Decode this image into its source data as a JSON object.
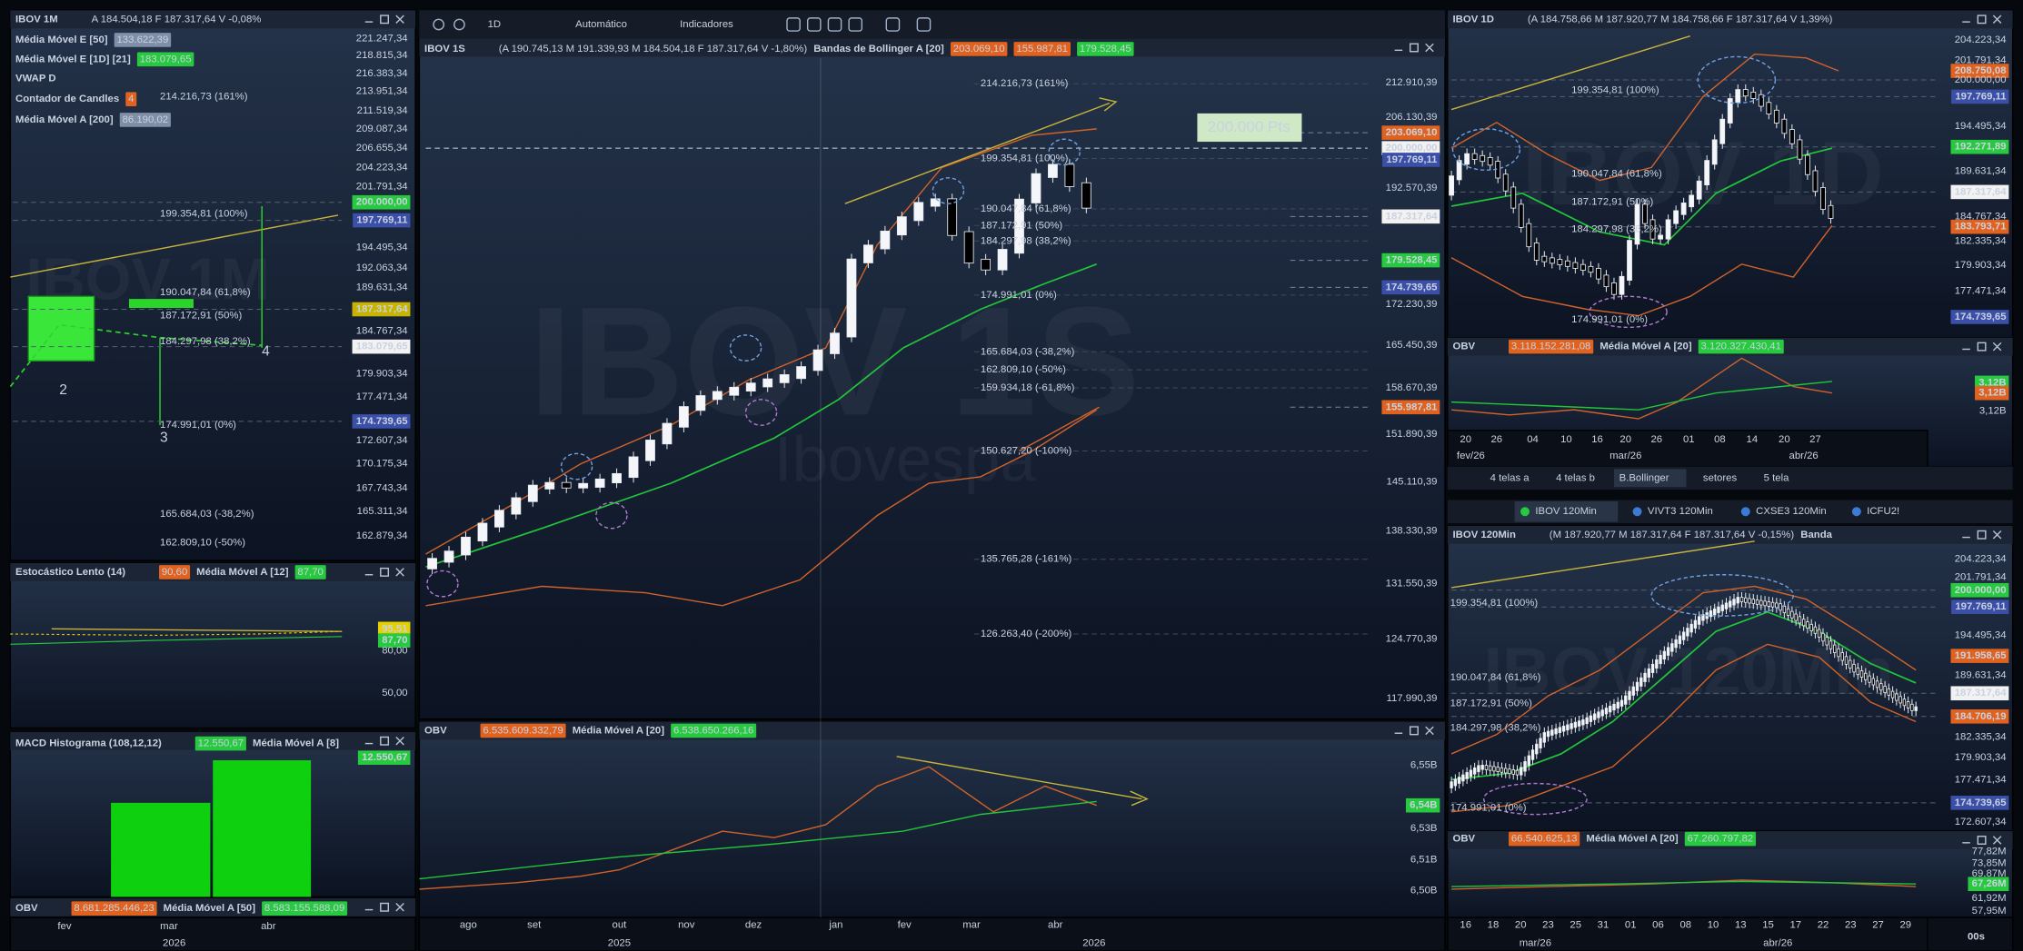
{
  "toolbar": [
    "1D",
    "Automático",
    "Indicadores"
  ],
  "tabs": [
    "4 telas a",
    "4 telas b",
    "B.Bollinger",
    "setores",
    "5 tela"
  ],
  "chart_tabs": [
    "IBOV 120Min",
    "VIVT3 120Min",
    "CXSE3 120Min",
    "ICFU2!"
  ],
  "status": "00s",
  "panels": [
    {
      "header": [
        {
          "text": "IBOV 1M",
          "bold": true
        },
        {
          "text": "A 184.504,18 F 187.317,64 V -0,08%",
          "fg": "#ff6b6b"
        }
      ],
      "watermark": "IBOV 1M",
      "indicators": [
        [
          {
            "text": "Média Móvel E [50]",
            "bold": true
          },
          {
            "text": "133.622,39",
            "bg": "#7f8fa8"
          }
        ],
        [
          {
            "text": "Média Móvel E [1D] [21]",
            "bold": true
          },
          {
            "text": "183.079,65",
            "bg": "#27c93f"
          }
        ],
        [
          {
            "text": "VWAP D",
            "bold": true
          }
        ],
        [
          {
            "text": "Contador de Candles",
            "bold": true
          },
          {
            "text": "4",
            "bg": "#e0621e"
          }
        ],
        [
          {
            "text": "Média Móvel A [200]",
            "bold": true
          },
          {
            "text": "86.190,02",
            "bg": "#7f8fa8"
          }
        ]
      ],
      "axis": [
        {
          "label": "221.247,34"
        },
        {
          "label": "218.815,34"
        },
        {
          "label": "216.383,34"
        },
        {
          "label": "213.951,34"
        },
        {
          "label": "211.519,34"
        },
        {
          "label": "209.087,34"
        },
        {
          "label": "206.655,34"
        },
        {
          "label": "204.223,34"
        },
        {
          "label": "201.791,34"
        },
        {
          "label": "200.000,00",
          "bg": "#27c93f"
        },
        {
          "label": "197.769,11",
          "bg": "#3b4fa8"
        },
        {
          "label": "194.495,34"
        },
        {
          "label": "192.063,34"
        },
        {
          "label": "189.631,34"
        },
        {
          "label": "187.317,64",
          "bg": "#c8b400"
        },
        {
          "label": "184.767,34"
        },
        {
          "label": "183.079,65",
          "bg": "#f2f2f2"
        },
        {
          "label": "179.903,34"
        },
        {
          "label": "177.471,34"
        },
        {
          "label": "174.739,65",
          "bg": "#3b4fa8"
        },
        {
          "label": "172.607,34"
        },
        {
          "label": "170.175,34"
        },
        {
          "label": "167.743,34"
        },
        {
          "label": "165.311,34"
        },
        {
          "label": "162.879,34"
        }
      ],
      "fib": [
        "214.216,73 (161%)",
        "199.354,81 (100%)",
        "190.047,84 (61,8%)",
        "187.172,91 (50%)",
        "184.297,98 (38,2%)",
        "174.991,01 (0%)",
        "165.684,03 (-38,2%)",
        "162.809,10 (-50%)"
      ],
      "waves": [
        "2",
        "3",
        "4"
      ]
    },
    {
      "header": [
        {
          "text": "Estocástico Lento (14)",
          "bold": true
        },
        {
          "text": "90,60",
          "bg": "#e0621e"
        },
        {
          "text": "Média Móvel A [12]",
          "bold": true
        },
        {
          "text": "87,70",
          "bg": "#27c93f"
        }
      ],
      "axis": [
        {
          "label": "95,51",
          "bg": "#e8d000"
        },
        {
          "label": "87,70",
          "bg": "#27c93f"
        },
        {
          "label": "80,00"
        },
        {
          "label": "50,00"
        }
      ]
    },
    {
      "header": [
        {
          "text": "MACD Histograma (108,12,12)",
          "bold": true
        },
        {
          "text": "12.550,67",
          "bg": "#27c93f"
        },
        {
          "text": "Média Móvel A [8]",
          "bold": true
        }
      ],
      "axis": [
        {
          "label": "12.550,67",
          "bg": "#27c93f"
        }
      ]
    },
    {
      "header": [
        {
          "text": "OBV",
          "bold": true
        },
        {
          "text": "8.681.285.446,23",
          "bg": "#e0621e"
        },
        {
          "text": "Média Móvel A [50]",
          "bold": true
        },
        {
          "text": "8.583.155.588,09",
          "bg": "#27c93f"
        }
      ],
      "x_labels": [
        "fev",
        "mar",
        "abr"
      ],
      "x_groups": [
        "2026"
      ]
    },
    {
      "header": [
        {
          "text": "IBOV 1S",
          "bold": true
        },
        {
          "text": "(A 190.745,13 M 191.339,93 M 184.504,18 F 187.317,64 V -1,80%)",
          "fg": "#ff6b6b"
        },
        {
          "text": "Bandas de Bollinger A [20]",
          "bold": true
        },
        {
          "text": "203.069,10",
          "bg": "#e0621e"
        },
        {
          "text": "155.987,81",
          "bg": "#e0621e"
        },
        {
          "text": "179.528,45",
          "bg": "#27c93f"
        }
      ],
      "watermark": "IBOV 1S",
      "watermark_sub": "Ibovespa",
      "note": "200.000 Pts",
      "axis": [
        {
          "label": "212.910,39"
        },
        {
          "label": "206.130,39"
        },
        {
          "label": "203.069,10",
          "bg": "#e0621e"
        },
        {
          "label": "200.000,00",
          "bg": "#f2f2f2"
        },
        {
          "label": "197.769,11",
          "bg": "#3b4fa8"
        },
        {
          "label": "192.570,39"
        },
        {
          "label": "187.317,64",
          "bg": "#f2f2f2"
        },
        {
          "label": "179.528,45",
          "bg": "#27c93f"
        },
        {
          "label": "174.739,65",
          "bg": "#3b4fa8"
        },
        {
          "label": "172.230,39"
        },
        {
          "label": "165.450,39"
        },
        {
          "label": "158.670,39"
        },
        {
          "label": "155.987,81",
          "bg": "#e0621e"
        },
        {
          "label": "151.890,39"
        },
        {
          "label": "145.110,39"
        },
        {
          "label": "138.330,39"
        },
        {
          "label": "131.550,39"
        },
        {
          "label": "124.770,39"
        },
        {
          "label": "117.990,39"
        }
      ],
      "fib": [
        "214.216,73 (161%)",
        "199.354,81 (100%)",
        "190.047,84 (61,8%)",
        "187.172,91 (50%)",
        "184.297,98 (38,2%)",
        "174.991,01 (0%)",
        "165.684,03 (-38,2%)",
        "162.809,10 (-50%)",
        "159.934,18 (-61,8%)",
        "150.627,20 (-100%)",
        "135.765,28 (-161%)",
        "126.263,40 (-200%)"
      ]
    },
    {
      "header": [
        {
          "text": "OBV",
          "bold": true
        },
        {
          "text": "6.535.609.332,79",
          "bg": "#e0621e"
        },
        {
          "text": "Média Móvel A [20]",
          "bold": true
        },
        {
          "text": "6.538.650.266,16",
          "bg": "#27c93f"
        }
      ],
      "axis": [
        {
          "label": "6,55B"
        },
        {
          "label": "6,54B",
          "bg": "#27c93f"
        },
        {
          "label": "6,53B"
        },
        {
          "label": "6,51B"
        },
        {
          "label": "6,50B"
        }
      ],
      "x_labels": [
        "ago",
        "set",
        "out",
        "nov",
        "dez",
        "jan",
        "fev",
        "mar",
        "abr"
      ],
      "x_groups": [
        "2025",
        "2026"
      ]
    },
    {
      "header": [
        {
          "text": "IBOV 1D",
          "bold": true
        },
        {
          "text": "(A 184.758,66 M 187.920,77 M 184.758,66 F 187.317,64 V 1,39%)",
          "fg": "#7dff8a"
        }
      ],
      "watermark": "IBOV 1D",
      "axis": [
        {
          "label": "204.223,34"
        },
        {
          "label": "201.791,34"
        },
        {
          "label": "208.750,08",
          "bg": "#e0621e"
        },
        {
          "label": "200.000,00"
        },
        {
          "label": "197.769,11",
          "bg": "#3b4fa8"
        },
        {
          "label": "194.495,34"
        },
        {
          "label": "192.271,89",
          "bg": "#27c93f"
        },
        {
          "label": "189.631,34"
        },
        {
          "label": "187.317,64",
          "bg": "#f2f2f2"
        },
        {
          "label": "184.767,34"
        },
        {
          "label": "183.793,71",
          "bg": "#e0621e"
        },
        {
          "label": "182.335,34"
        },
        {
          "label": "179.903,34"
        },
        {
          "label": "177.471,34"
        },
        {
          "label": "174.739,65",
          "bg": "#3b4fa8"
        }
      ],
      "fib": [
        "199.354,81 (100%)",
        "190.047,84 (61,8%)",
        "187.172,91 (50%)",
        "184.297,98 (38,2%)",
        "174.991,01 (0%)"
      ]
    },
    {
      "header": [
        {
          "text": "OBV",
          "bold": true
        },
        {
          "text": "3.118.152.281,08",
          "bg": "#e0621e"
        },
        {
          "text": "Média Móvel A [20]",
          "bold": true
        },
        {
          "text": "3.120.327.430,41",
          "bg": "#27c93f"
        }
      ],
      "axis": [
        {
          "label": "3,12B",
          "bg": "#27c93f"
        },
        {
          "label": "3,12B",
          "bg": "#e0621e"
        },
        {
          "label": "3,12B"
        }
      ],
      "x_labels": [
        "20",
        "26",
        "04",
        "10",
        "16",
        "20",
        "26",
        "01",
        "08",
        "14",
        "20",
        "27"
      ],
      "x_groups": [
        "fev/26",
        "mar/26",
        "abr/26"
      ]
    },
    {
      "header": [
        {
          "text": "IBOV 120Min",
          "bold": true
        },
        {
          "text": "(M 187.920,77 M 187.317,64 F 187.317,64 V -0,15%)",
          "fg": "#ff6b6b"
        },
        {
          "text": "Banda",
          "bold": true
        }
      ],
      "watermark": "IBOV 120Min",
      "axis": [
        {
          "label": "204.223,34"
        },
        {
          "label": "201.791,34"
        },
        {
          "label": "200.000,00",
          "bg": "#27c93f"
        },
        {
          "label": "197.769,11",
          "bg": "#3b4fa8"
        },
        {
          "label": "194.495,34"
        },
        {
          "label": "191.958,65",
          "bg": "#e0621e"
        },
        {
          "label": "189.631,34"
        },
        {
          "label": "187.317,64",
          "bg": "#f2f2f2"
        },
        {
          "label": "184.706,19",
          "bg": "#e0621e"
        },
        {
          "label": "182.335,34"
        },
        {
          "label": "179.903,34"
        },
        {
          "label": "177.471,34"
        },
        {
          "label": "174.739,65",
          "bg": "#3b4fa8"
        },
        {
          "label": "172.607,34"
        }
      ],
      "fib": [
        "199.354,81 (100%)",
        "190.047,84 (61,8%)",
        "187.172,91 (50%)",
        "184.297,98 (38,2%)",
        "174.991,01 (0%)"
      ]
    },
    {
      "header": [
        {
          "text": "OBV",
          "bold": true
        },
        {
          "text": "66.540.625,13",
          "bg": "#e0621e"
        },
        {
          "text": "Média Móvel A [20]",
          "bold": true
        },
        {
          "text": "67.260.797,82",
          "bg": "#27c93f"
        }
      ],
      "axis": [
        {
          "label": "77,82M"
        },
        {
          "label": "73,85M"
        },
        {
          "label": "69,87M"
        },
        {
          "label": "67,26M",
          "bg": "#27c93f"
        },
        {
          "label": "61,92M"
        },
        {
          "label": "57,95M"
        }
      ],
      "x_labels": [
        "16",
        "18",
        "20",
        "23",
        "25",
        "31",
        "01",
        "06",
        "08",
        "10",
        "13",
        "15",
        "17",
        "22",
        "23",
        "27",
        "29"
      ],
      "x_groups": [
        "mar/26",
        "abr/26"
      ]
    }
  ]
}
